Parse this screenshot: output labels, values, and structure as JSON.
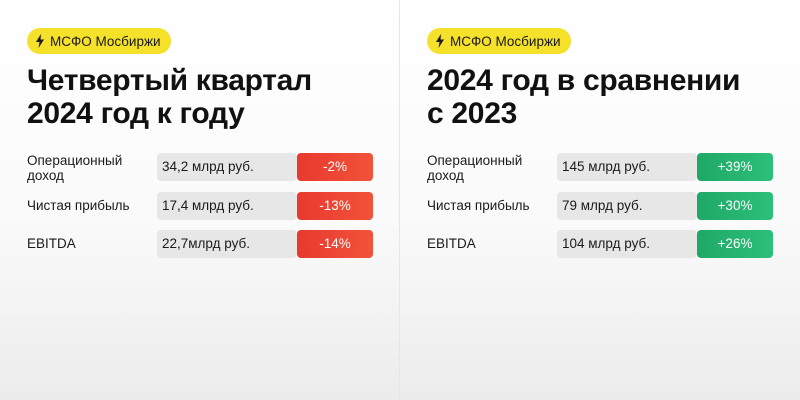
{
  "colors": {
    "tag_bg": "#f5e12a",
    "negative": "#e8392f",
    "positive": "#1fa866",
    "value_bg": "#e7e7e7"
  },
  "left": {
    "tag": "МСФО Мосбиржи",
    "title_lines": [
      "Четвертый квартал",
      "2024 год к году"
    ],
    "rows": [
      {
        "label_lines": [
          "Операционный",
          "доход"
        ],
        "value": "34,2 млрд руб.",
        "change": "-2%"
      },
      {
        "label_lines": [
          "Чистая прибыль"
        ],
        "value": "17,4 млрд руб.",
        "change": "-13%"
      },
      {
        "label_lines": [
          "EBITDA"
        ],
        "value": "22,7млрд руб.",
        "change": "-14%"
      }
    ]
  },
  "right": {
    "tag": "МСФО Мосбиржи",
    "title_lines": [
      "2024 год в сравнении",
      "с 2023"
    ],
    "rows": [
      {
        "label_lines": [
          "Операционный",
          "доход"
        ],
        "value": "145 млрд руб.",
        "change": "+39%"
      },
      {
        "label_lines": [
          "Чистая прибыль"
        ],
        "value": "79 млрд руб.",
        "change": "+30%"
      },
      {
        "label_lines": [
          "EBITDA"
        ],
        "value": "104 млрд руб.",
        "change": "+26%"
      }
    ]
  }
}
